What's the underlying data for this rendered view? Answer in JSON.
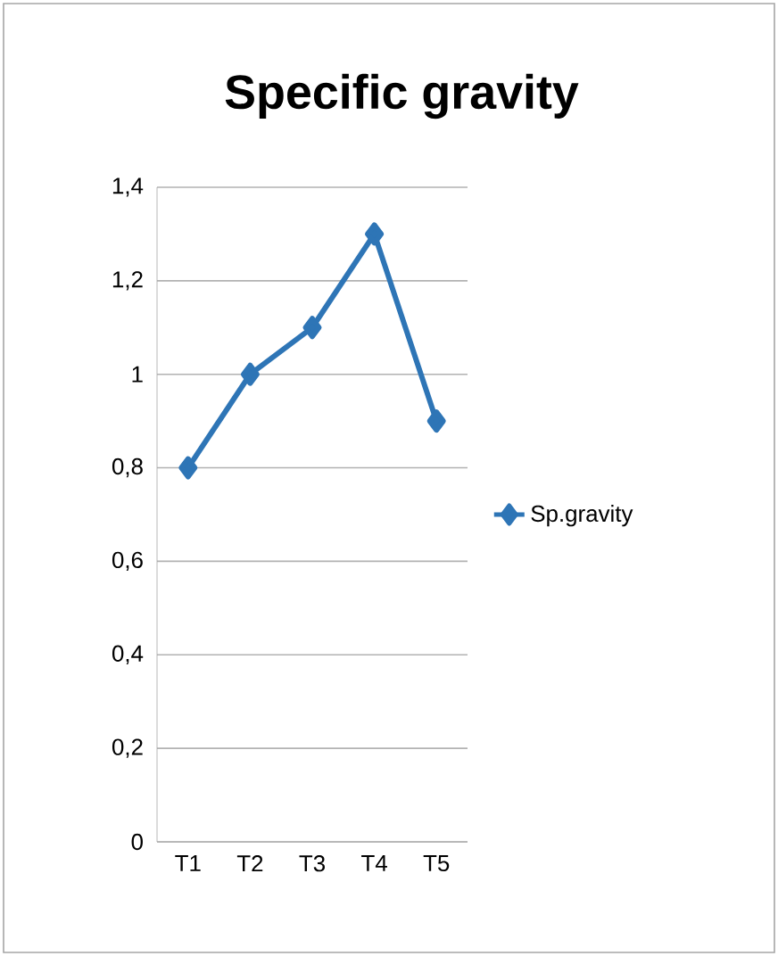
{
  "chart_data": {
    "type": "line",
    "title": "Specific gravity",
    "categories": [
      "T1",
      "T2",
      "T3",
      "T4",
      "T5"
    ],
    "series": [
      {
        "name": "Sp.gravity",
        "color": "#2e75b6",
        "values": [
          0.8,
          1.0,
          1.1,
          1.3,
          0.9
        ]
      }
    ],
    "ylim": [
      0,
      1.4
    ],
    "yticks": [
      0,
      {
        "value": 0.2,
        "label": "0,2"
      },
      {
        "value": 0.4,
        "label": "0,4"
      },
      {
        "value": 0.6,
        "label": "0,6"
      },
      {
        "value": 0.8,
        "label": "0,8"
      },
      1,
      {
        "value": 1.2,
        "label": "1,2"
      },
      {
        "value": 1.4,
        "label": "1,4"
      }
    ],
    "grid": "y",
    "legend": "right",
    "marker": "diamond",
    "line_style": "solid"
  }
}
